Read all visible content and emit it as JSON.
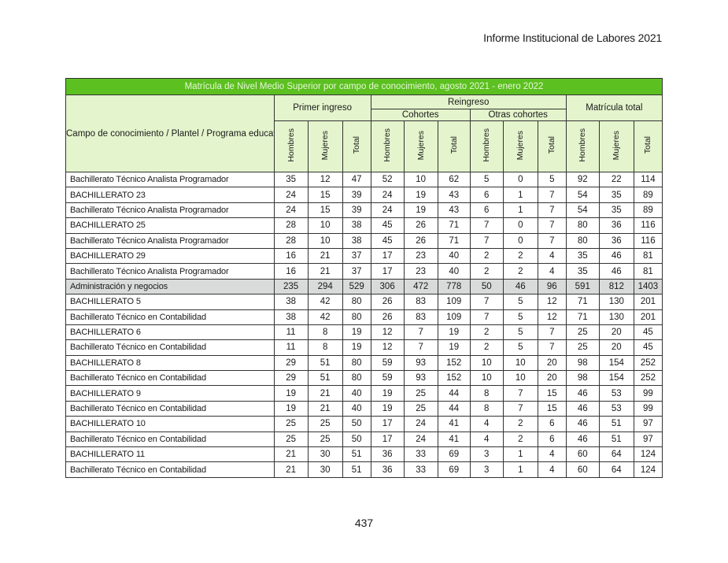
{
  "header": {
    "report_title": "Informe Institucional de Labores 2021"
  },
  "table": {
    "title": "Matrícula de Nivel Medio Superior por campo de conocimiento, agosto 2021 - enero 2022",
    "col_campo": "Campo de conocimiento / Plantel / Programa educativo",
    "group_primer": "Primer ingreso",
    "group_reingreso": "Reingreso",
    "group_cohortes": "Cohortes",
    "group_otras": "Otras cohortes",
    "group_total": "Matrícula total",
    "sub_hombres": "Hombres",
    "sub_mujeres": "Mujeres",
    "sub_total": "Total",
    "rows": [
      {
        "label": "Bachillerato Técnico Analista Programador",
        "v": [
          "35",
          "12",
          "47",
          "52",
          "10",
          "62",
          "5",
          "0",
          "5",
          "92",
          "22",
          "114"
        ]
      },
      {
        "label": "BACHILLERATO 23",
        "v": [
          "24",
          "15",
          "39",
          "24",
          "19",
          "43",
          "6",
          "1",
          "7",
          "54",
          "35",
          "89"
        ]
      },
      {
        "label": "Bachillerato Técnico Analista Programador",
        "v": [
          "24",
          "15",
          "39",
          "24",
          "19",
          "43",
          "6",
          "1",
          "7",
          "54",
          "35",
          "89"
        ]
      },
      {
        "label": "BACHILLERATO 25",
        "v": [
          "28",
          "10",
          "38",
          "45",
          "26",
          "71",
          "7",
          "0",
          "7",
          "80",
          "36",
          "116"
        ]
      },
      {
        "label": "Bachillerato Técnico Analista Programador",
        "v": [
          "28",
          "10",
          "38",
          "45",
          "26",
          "71",
          "7",
          "0",
          "7",
          "80",
          "36",
          "116"
        ]
      },
      {
        "label": "BACHILLERATO 29",
        "v": [
          "16",
          "21",
          "37",
          "17",
          "23",
          "40",
          "2",
          "2",
          "4",
          "35",
          "46",
          "81"
        ]
      },
      {
        "label": "Bachillerato Técnico Analista Programador",
        "v": [
          "16",
          "21",
          "37",
          "17",
          "23",
          "40",
          "2",
          "2",
          "4",
          "35",
          "46",
          "81"
        ]
      },
      {
        "label": "Administración y negocios",
        "v": [
          "235",
          "294",
          "529",
          "306",
          "472",
          "778",
          "50",
          "46",
          "96",
          "591",
          "812",
          "1403"
        ],
        "subtotal": true
      },
      {
        "label": "BACHILLERATO 5",
        "v": [
          "38",
          "42",
          "80",
          "26",
          "83",
          "109",
          "7",
          "5",
          "12",
          "71",
          "130",
          "201"
        ]
      },
      {
        "label": "Bachillerato Técnico en Contabilidad",
        "v": [
          "38",
          "42",
          "80",
          "26",
          "83",
          "109",
          "7",
          "5",
          "12",
          "71",
          "130",
          "201"
        ]
      },
      {
        "label": "BACHILLERATO 6",
        "v": [
          "11",
          "8",
          "19",
          "12",
          "7",
          "19",
          "2",
          "5",
          "7",
          "25",
          "20",
          "45"
        ]
      },
      {
        "label": "Bachillerato Técnico en Contabilidad",
        "v": [
          "11",
          "8",
          "19",
          "12",
          "7",
          "19",
          "2",
          "5",
          "7",
          "25",
          "20",
          "45"
        ]
      },
      {
        "label": "BACHILLERATO 8",
        "v": [
          "29",
          "51",
          "80",
          "59",
          "93",
          "152",
          "10",
          "10",
          "20",
          "98",
          "154",
          "252"
        ]
      },
      {
        "label": "Bachillerato Técnico en Contabilidad",
        "v": [
          "29",
          "51",
          "80",
          "59",
          "93",
          "152",
          "10",
          "10",
          "20",
          "98",
          "154",
          "252"
        ]
      },
      {
        "label": "BACHILLERATO 9",
        "v": [
          "19",
          "21",
          "40",
          "19",
          "25",
          "44",
          "8",
          "7",
          "15",
          "46",
          "53",
          "99"
        ]
      },
      {
        "label": "Bachillerato Técnico en Contabilidad",
        "v": [
          "19",
          "21",
          "40",
          "19",
          "25",
          "44",
          "8",
          "7",
          "15",
          "46",
          "53",
          "99"
        ]
      },
      {
        "label": "BACHILLERATO 10",
        "v": [
          "25",
          "25",
          "50",
          "17",
          "24",
          "41",
          "4",
          "2",
          "6",
          "46",
          "51",
          "97"
        ]
      },
      {
        "label": "Bachillerato Técnico en Contabilidad",
        "v": [
          "25",
          "25",
          "50",
          "17",
          "24",
          "41",
          "4",
          "2",
          "6",
          "46",
          "51",
          "97"
        ]
      },
      {
        "label": "BACHILLERATO 11",
        "v": [
          "21",
          "30",
          "51",
          "36",
          "33",
          "69",
          "3",
          "1",
          "4",
          "60",
          "64",
          "124"
        ]
      },
      {
        "label": "Bachillerato Técnico en Contabilidad",
        "v": [
          "21",
          "30",
          "51",
          "36",
          "33",
          "69",
          "3",
          "1",
          "4",
          "60",
          "64",
          "124"
        ]
      }
    ]
  },
  "footer": {
    "page_number": "437"
  }
}
